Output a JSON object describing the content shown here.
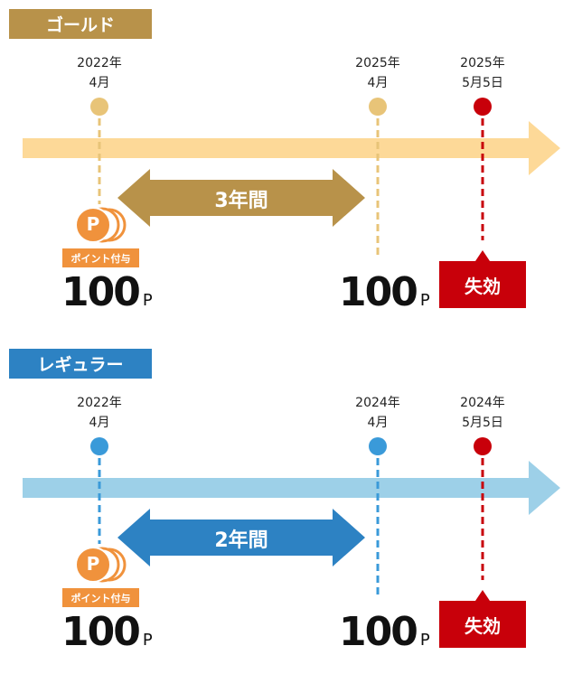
{
  "sections": [
    {
      "label": "ゴールド",
      "label_color": "#b8924a",
      "bar_color": "#fdd998",
      "dot_color": "#e8c478",
      "span_color": "#b8924a",
      "start": {
        "year": "2022年",
        "month": "4月"
      },
      "end": {
        "year": "2025年",
        "month": "4月"
      },
      "expiry": {
        "year": "2025年",
        "date": "5月5日"
      },
      "span_label": "3年間",
      "badge": "ポイント付与",
      "points": "100",
      "points_unit": "P",
      "expired_label": "失効",
      "coin_letter": "P"
    },
    {
      "label": "レギュラー",
      "label_color": "#2d82c3",
      "bar_color": "#9dd0e8",
      "dot_color": "#3a9ad9",
      "span_color": "#2d82c3",
      "start": {
        "year": "2022年",
        "month": "4月"
      },
      "end": {
        "year": "2024年",
        "month": "4月"
      },
      "expiry": {
        "year": "2024年",
        "date": "5月5日"
      },
      "span_label": "2年間",
      "badge": "ポイント付与",
      "points": "100",
      "points_unit": "P",
      "expired_label": "失効",
      "coin_letter": "P"
    }
  ],
  "colors": {
    "expiry": "#c8000a",
    "coin": "#f0923c"
  }
}
